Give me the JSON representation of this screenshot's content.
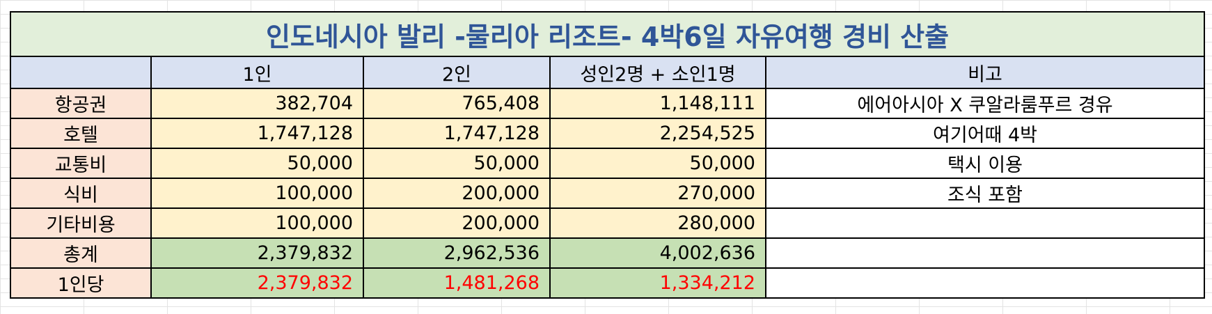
{
  "title": "인도네시아 발리 -물리아 리조트- 4박6일 자유여행 경비 산출",
  "headers": [
    "",
    "1인",
    "2인",
    "성인2명 + 소인1명",
    "비고"
  ],
  "rows": [
    {
      "label": "항공권",
      "v1": "382,704",
      "v2": "765,408",
      "v3": "1,148,111",
      "note": "에어아시아 X 쿠알라룸푸르 경유"
    },
    {
      "label": "호텔",
      "v1": "1,747,128",
      "v2": "1,747,128",
      "v3": "2,254,525",
      "note": "여기어때 4박"
    },
    {
      "label": "교통비",
      "v1": "50,000",
      "v2": "50,000",
      "v3": "50,000",
      "note": "택시 이용"
    },
    {
      "label": "식비",
      "v1": "100,000",
      "v2": "200,000",
      "v3": "270,000",
      "note": "조식 포함"
    },
    {
      "label": "기타비용",
      "v1": "100,000",
      "v2": "200,000",
      "v3": "280,000",
      "note": ""
    }
  ],
  "total": {
    "label": "총계",
    "v1": "2,379,832",
    "v2": "2,962,536",
    "v3": "4,002,636",
    "note": ""
  },
  "per_person": {
    "label": "1인당",
    "v1": "2,379,832",
    "v2": "1,481,268",
    "v3": "1,334,212",
    "note": ""
  },
  "colors": {
    "title_bg": "#e2efda",
    "title_text": "#2f5597",
    "header_bg": "#d9e1f2",
    "label_bg": "#fce4d6",
    "value_bg": "#fff2cc",
    "total_bg": "#c6e0b4",
    "per_person_text": "#ff0000"
  }
}
